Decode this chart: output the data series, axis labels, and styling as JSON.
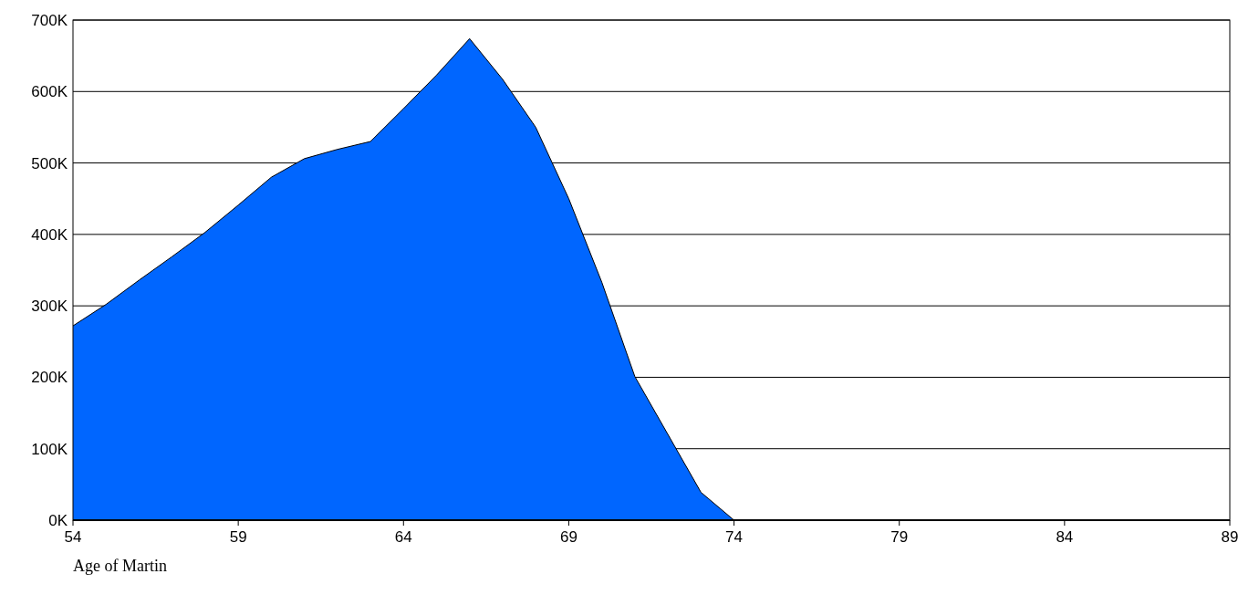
{
  "chart_data": {
    "type": "area",
    "xlabel": "Age of Martin",
    "x": [
      54,
      55,
      56,
      57,
      58,
      59,
      60,
      61,
      62,
      63,
      64,
      65,
      66,
      67,
      68,
      69,
      70,
      71,
      72,
      73,
      74,
      75,
      76,
      77,
      78,
      79,
      80,
      81,
      82,
      83,
      84,
      85,
      86,
      87,
      88,
      89
    ],
    "series": [
      {
        "color": "#0066ff",
        "values": [
          272000,
          302000,
          336000,
          369000,
          403000,
          441000,
          480000,
          506000,
          519000,
          530000,
          576000,
          623000,
          674000,
          617000,
          550000,
          450000,
          333000,
          201000,
          120000,
          39000,
          0,
          0,
          0,
          0,
          0,
          0,
          0,
          0,
          0,
          0,
          0,
          0,
          0,
          0,
          0,
          0
        ]
      }
    ],
    "xlim": [
      54,
      89
    ],
    "xticks": [
      54,
      59,
      64,
      69,
      74,
      79,
      84,
      89
    ],
    "ylim": [
      0,
      700000
    ],
    "yticks": [
      {
        "value": 0,
        "label": "0K"
      },
      {
        "value": 100000,
        "label": "100K"
      },
      {
        "value": 200000,
        "label": "200K"
      },
      {
        "value": 300000,
        "label": "300K"
      },
      {
        "value": 400000,
        "label": "400K"
      },
      {
        "value": 500000,
        "label": "500K"
      },
      {
        "value": 600000,
        "label": "600K"
      },
      {
        "value": 700000,
        "label": "700K"
      }
    ],
    "grid": "y"
  }
}
